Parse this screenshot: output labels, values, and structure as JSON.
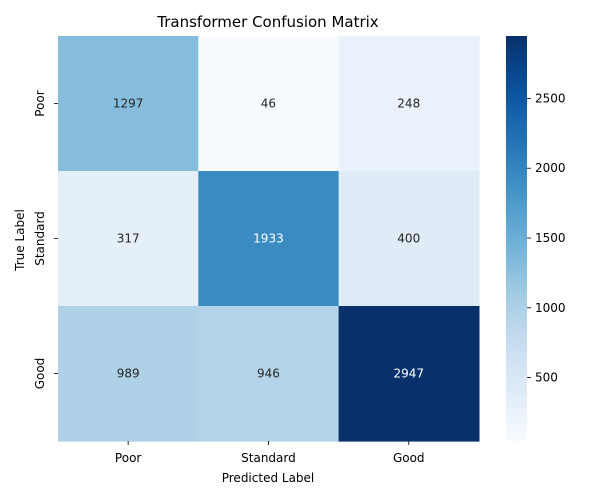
{
  "chart_data": {
    "type": "heatmap",
    "title": "Transformer Confusion Matrix",
    "xlabel": "Predicted Label",
    "ylabel": "True Label",
    "x_categories": [
      "Poor",
      "Standard",
      "Good"
    ],
    "y_categories": [
      "Poor",
      "Standard",
      "Good"
    ],
    "values": [
      [
        1297,
        46,
        248
      ],
      [
        317,
        1933,
        400
      ],
      [
        989,
        946,
        2947
      ]
    ],
    "colormap": "Blues",
    "colorbar": {
      "ticks": [
        500,
        1000,
        1500,
        2000,
        2500
      ],
      "range": [
        46,
        2947
      ]
    }
  }
}
